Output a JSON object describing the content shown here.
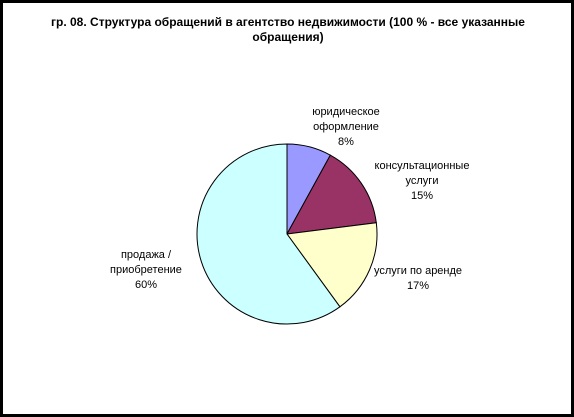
{
  "chart_data": {
    "type": "pie",
    "title": "гр. 08. Структура обращений в агентство недвижимости (100 % - все указанные обращения)",
    "categories": [
      "юридическое оформление",
      "консультационные услуги",
      "услуги по аренде",
      "продажа / приобретение"
    ],
    "values": [
      8,
      15,
      17,
      60
    ],
    "value_labels": [
      "8%",
      "15%",
      "17%",
      "60%"
    ],
    "colors": [
      "#9999ff",
      "#993366",
      "#ffffcc",
      "#ccffff"
    ]
  }
}
